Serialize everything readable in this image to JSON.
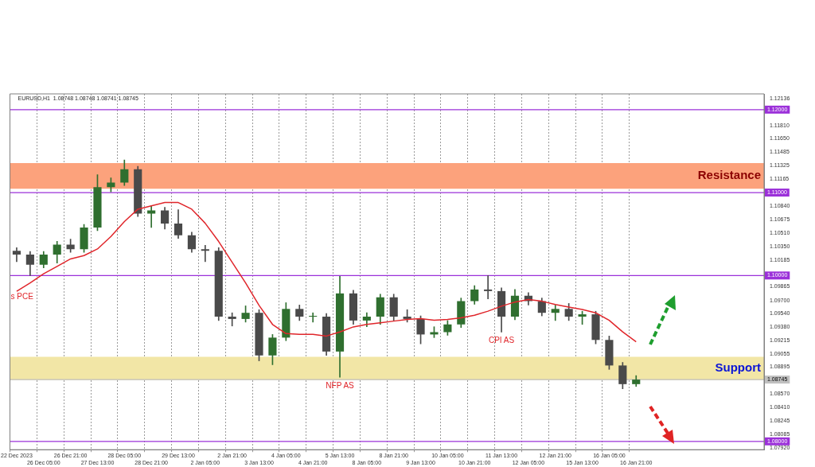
{
  "chart_data": {
    "type": "candlestick",
    "title": "EURUSD,H1  1.08748 1.08748 1.08741 1.08745",
    "colors": [
      "#4a4a4a",
      "#4a4a4a",
      "#2f6f2f",
      "#2f6f2f",
      "#4a4a4a",
      "#2f6f2f",
      "#2f6f2f",
      "#2f6f2f",
      "#2f6f2f",
      "#4a4a4a",
      "#2f6f2f",
      "#4a4a4a",
      "#4a4a4a",
      "#4a4a4a",
      "#4a4a4a",
      "#4a4a4a",
      "#4a4a4a",
      "#2f6f2f",
      "#4a4a4a",
      "#2f6f2f",
      "#2f6f2f",
      "#4a4a4a",
      "#2f6f2f",
      "#4a4a4a",
      "#2f6f2f",
      "#4a4a4a",
      "#2f6f2f",
      "#2f6f2f",
      "#4a4a4a",
      "#4a4a4a",
      "#4a4a4a",
      "#2f6f2f",
      "#2f6f2f",
      "#2f6f2f",
      "#2f6f2f",
      "#4a4a4a",
      "#4a4a4a",
      "#2f6f2f",
      "#4a4a4a",
      "#4a4a4a",
      "#2f6f2f",
      "#4a4a4a",
      "#2f6f2f",
      "#4a4a4a",
      "#4a4a4a",
      "#4a4a4a",
      "#2f6f2f",
      null,
      null,
      null,
      null,
      null,
      null,
      null,
      null,
      null
    ],
    "categories": [
      "22 Dec 2023",
      null,
      "26 Dec 05:00",
      null,
      "26 Dec 21:00",
      null,
      "27 Dec 13:00",
      null,
      "28 Dec 05:00",
      null,
      "28 Dec 21:00",
      null,
      "29 Dec 13:00",
      null,
      "2 Jan 05:00",
      null,
      "2 Jan 21:00",
      null,
      "3 Jan 13:00",
      null,
      "4 Jan 05:00",
      null,
      "4 Jan 21:00",
      null,
      "5 Jan 13:00",
      null,
      "8 Jan 05:00",
      null,
      "8 Jan 21:00",
      null,
      "9 Jan 13:00",
      null,
      "10 Jan 05:00",
      null,
      "10 Jan 21:00",
      null,
      "11 Jan 13:00",
      null,
      "12 Jan 05:00",
      null,
      "12 Jan 21:00",
      null,
      "15 Jan 13:00",
      null,
      "16 Jan 05:00",
      null,
      "16 Jan 21:00",
      null,
      null,
      null,
      null,
      null,
      null,
      null,
      null,
      null
    ],
    "ohlc": [
      [
        1.10298,
        1.10336,
        1.10167,
        1.10252
      ],
      [
        1.10252,
        1.10289,
        1.09999,
        1.1013
      ],
      [
        1.1013,
        1.10289,
        1.10093,
        1.10252
      ],
      [
        1.10252,
        1.10411,
        1.10149,
        1.10373
      ],
      [
        1.10373,
        1.10439,
        1.1028,
        1.10317
      ],
      [
        1.10317,
        1.10616,
        1.1028,
        1.10579
      ],
      [
        1.10579,
        1.11215,
        1.10541,
        1.11065
      ],
      [
        1.11065,
        1.11177,
        1.11009,
        1.11121
      ],
      [
        1.11121,
        1.11392,
        1.11084,
        1.1128
      ],
      [
        1.1128,
        1.11317,
        1.1071,
        1.10747
      ],
      [
        1.10747,
        1.10841,
        1.10579,
        1.10785
      ],
      [
        1.10785,
        1.10822,
        1.1056,
        1.10626
      ],
      [
        1.10626,
        1.10794,
        1.10448,
        1.10485
      ],
      [
        1.10485,
        1.10523,
        1.1028,
        1.10317
      ],
      [
        1.10317,
        1.10364,
        1.10167,
        1.10298
      ],
      [
        1.10298,
        1.10336,
        1.09457,
        1.09504
      ],
      [
        1.09504,
        1.0955,
        1.09391,
        1.09476
      ],
      [
        1.09476,
        1.09634,
        1.09438,
        1.0955
      ],
      [
        1.0955,
        1.09588,
        1.08971,
        1.09036
      ],
      [
        1.09036,
        1.09289,
        1.08924,
        1.09251
      ],
      [
        1.09251,
        1.09672,
        1.09214,
        1.09597
      ],
      [
        1.09597,
        1.09644,
        1.09457,
        1.09504
      ],
      [
        1.09504,
        1.0955,
        1.09438,
        1.09504
      ],
      [
        1.09504,
        1.09541,
        1.09036,
        1.09083
      ],
      [
        1.09083,
        1.0999,
        1.08774,
        1.09784
      ],
      [
        1.09784,
        1.09821,
        1.0941,
        1.09457
      ],
      [
        1.09457,
        1.0955,
        1.09382,
        1.09504
      ],
      [
        1.09504,
        1.09775,
        1.0941,
        1.09737
      ],
      [
        1.09737,
        1.09775,
        1.09457,
        1.09504
      ],
      [
        1.09504,
        1.09588,
        1.09438,
        1.09476
      ],
      [
        1.09476,
        1.09513,
        1.09176,
        1.09289
      ],
      [
        1.09289,
        1.09382,
        1.09251,
        1.09317
      ],
      [
        1.09317,
        1.09457,
        1.09279,
        1.0941
      ],
      [
        1.0941,
        1.09728,
        1.09373,
        1.09691
      ],
      [
        1.09691,
        1.09878,
        1.09653,
        1.09831
      ],
      [
        1.09831,
        1.09999,
        1.09719,
        1.09812
      ],
      [
        1.09812,
        1.0985,
        1.09317,
        1.09504
      ],
      [
        1.09504,
        1.09831,
        1.09466,
        1.09756
      ],
      [
        1.09756,
        1.09793,
        1.09644,
        1.09691
      ],
      [
        1.09691,
        1.09728,
        1.09513,
        1.0955
      ],
      [
        1.0955,
        1.09644,
        1.09457,
        1.09597
      ],
      [
        1.09597,
        1.09663,
        1.09457,
        1.09504
      ],
      [
        1.09504,
        1.09569,
        1.0941,
        1.09532
      ],
      [
        1.09532,
        1.09569,
        1.09176,
        1.09223
      ],
      [
        1.09223,
        1.0927,
        1.08868,
        1.08915
      ],
      [
        1.08915,
        1.08952,
        1.08634,
        1.0869
      ],
      [
        1.0869,
        1.08793,
        1.08662,
        1.08745
      ],
      null,
      null,
      null,
      null,
      null,
      null,
      null,
      null,
      null
    ],
    "series": [
      {
        "type": "line",
        "color": "#e0262b",
        "values": [
          1.0981,
          1.0991,
          1.1002,
          1.1011,
          1.102,
          1.1024,
          1.1032,
          1.1047,
          1.1065,
          1.108,
          1.1084,
          1.1088,
          1.1088,
          1.108,
          1.1063,
          1.1041,
          1.1016,
          1.0991,
          1.0964,
          1.0941,
          1.093,
          1.0929,
          1.0929,
          1.0927,
          1.0932,
          1.0938,
          1.0941,
          1.0943,
          1.0945,
          1.0947,
          1.0948,
          1.0946,
          1.0947,
          1.0949,
          1.0952,
          1.0957,
          1.0963,
          1.0968,
          1.0971,
          1.0969,
          1.0965,
          1.0962,
          1.0959,
          1.0955,
          1.0946,
          1.0932,
          1.092,
          null,
          null,
          null,
          null,
          null,
          null,
          null,
          null,
          null
        ]
      }
    ],
    "ylim": [
      1.079,
      1.1219
    ],
    "yticks": [
      {
        "value": 1.12136,
        "label": "1.12136"
      },
      {
        "value": 1.1181,
        "label": "1.11810"
      },
      {
        "value": 1.1165,
        "label": "1.11650"
      },
      {
        "value": 1.11485,
        "label": "1.11485"
      },
      {
        "value": 1.11325,
        "label": "1.11325"
      },
      {
        "value": 1.11165,
        "label": "1.11165"
      },
      {
        "value": 1.1084,
        "label": "1.10840"
      },
      {
        "value": 1.10675,
        "label": "1.10675"
      },
      {
        "value": 1.1051,
        "label": "1.10510"
      },
      {
        "value": 1.1035,
        "label": "1.10350"
      },
      {
        "value": 1.10185,
        "label": "1.10185"
      },
      {
        "value": 1.09865,
        "label": "1.09865"
      },
      {
        "value": 1.097,
        "label": "1.09700"
      },
      {
        "value": 1.0954,
        "label": "1.09540"
      },
      {
        "value": 1.0938,
        "label": "1.09380"
      },
      {
        "value": 1.09215,
        "label": "1.09215"
      },
      {
        "value": 1.09055,
        "label": "1.09055"
      },
      {
        "value": 1.08895,
        "label": "1.08895"
      },
      {
        "value": 1.0857,
        "label": "1.08570"
      },
      {
        "value": 1.0841,
        "label": "1.08410"
      },
      {
        "value": 1.08245,
        "label": "1.08245"
      },
      {
        "value": 1.08085,
        "label": "1.08085"
      },
      {
        "value": 1.0792,
        "label": "1.07920"
      }
    ],
    "ref_lines": [
      {
        "axis": "y",
        "value": 1.12,
        "label": "1.12000",
        "color": "#9b30d9"
      },
      {
        "axis": "y",
        "value": 1.11,
        "label": "1.11000",
        "color": "#9b30d9"
      },
      {
        "axis": "y",
        "value": 1.1,
        "label": "1.10000",
        "color": "#9b30d9"
      },
      {
        "axis": "y",
        "value": 1.08,
        "label": "1.08000",
        "color": "#9b30d9"
      },
      {
        "axis": "y",
        "value": 1.08745,
        "label": "1.08745",
        "color": "#c0c0c0"
      }
    ],
    "bands": [
      {
        "axis": "y",
        "from": 1.11047,
        "to": 1.11355,
        "label": "Resistance",
        "color": "#fca27c"
      },
      {
        "axis": "y",
        "from": 1.08738,
        "to": 1.09019,
        "label": "Support",
        "color": "#f2e6a6"
      }
    ],
    "annotations": [
      {
        "text": "s PCE",
        "x": "22 Dec 2023",
        "y": 1.0985
      },
      {
        "text": "NFP AS",
        "x": "5 Jan 13:00",
        "y": 1.08774
      },
      {
        "text": "CPI AS",
        "x": "11 Jan 13:00",
        "y": 1.09317
      }
    ],
    "grid": "x",
    "legend": false
  }
}
